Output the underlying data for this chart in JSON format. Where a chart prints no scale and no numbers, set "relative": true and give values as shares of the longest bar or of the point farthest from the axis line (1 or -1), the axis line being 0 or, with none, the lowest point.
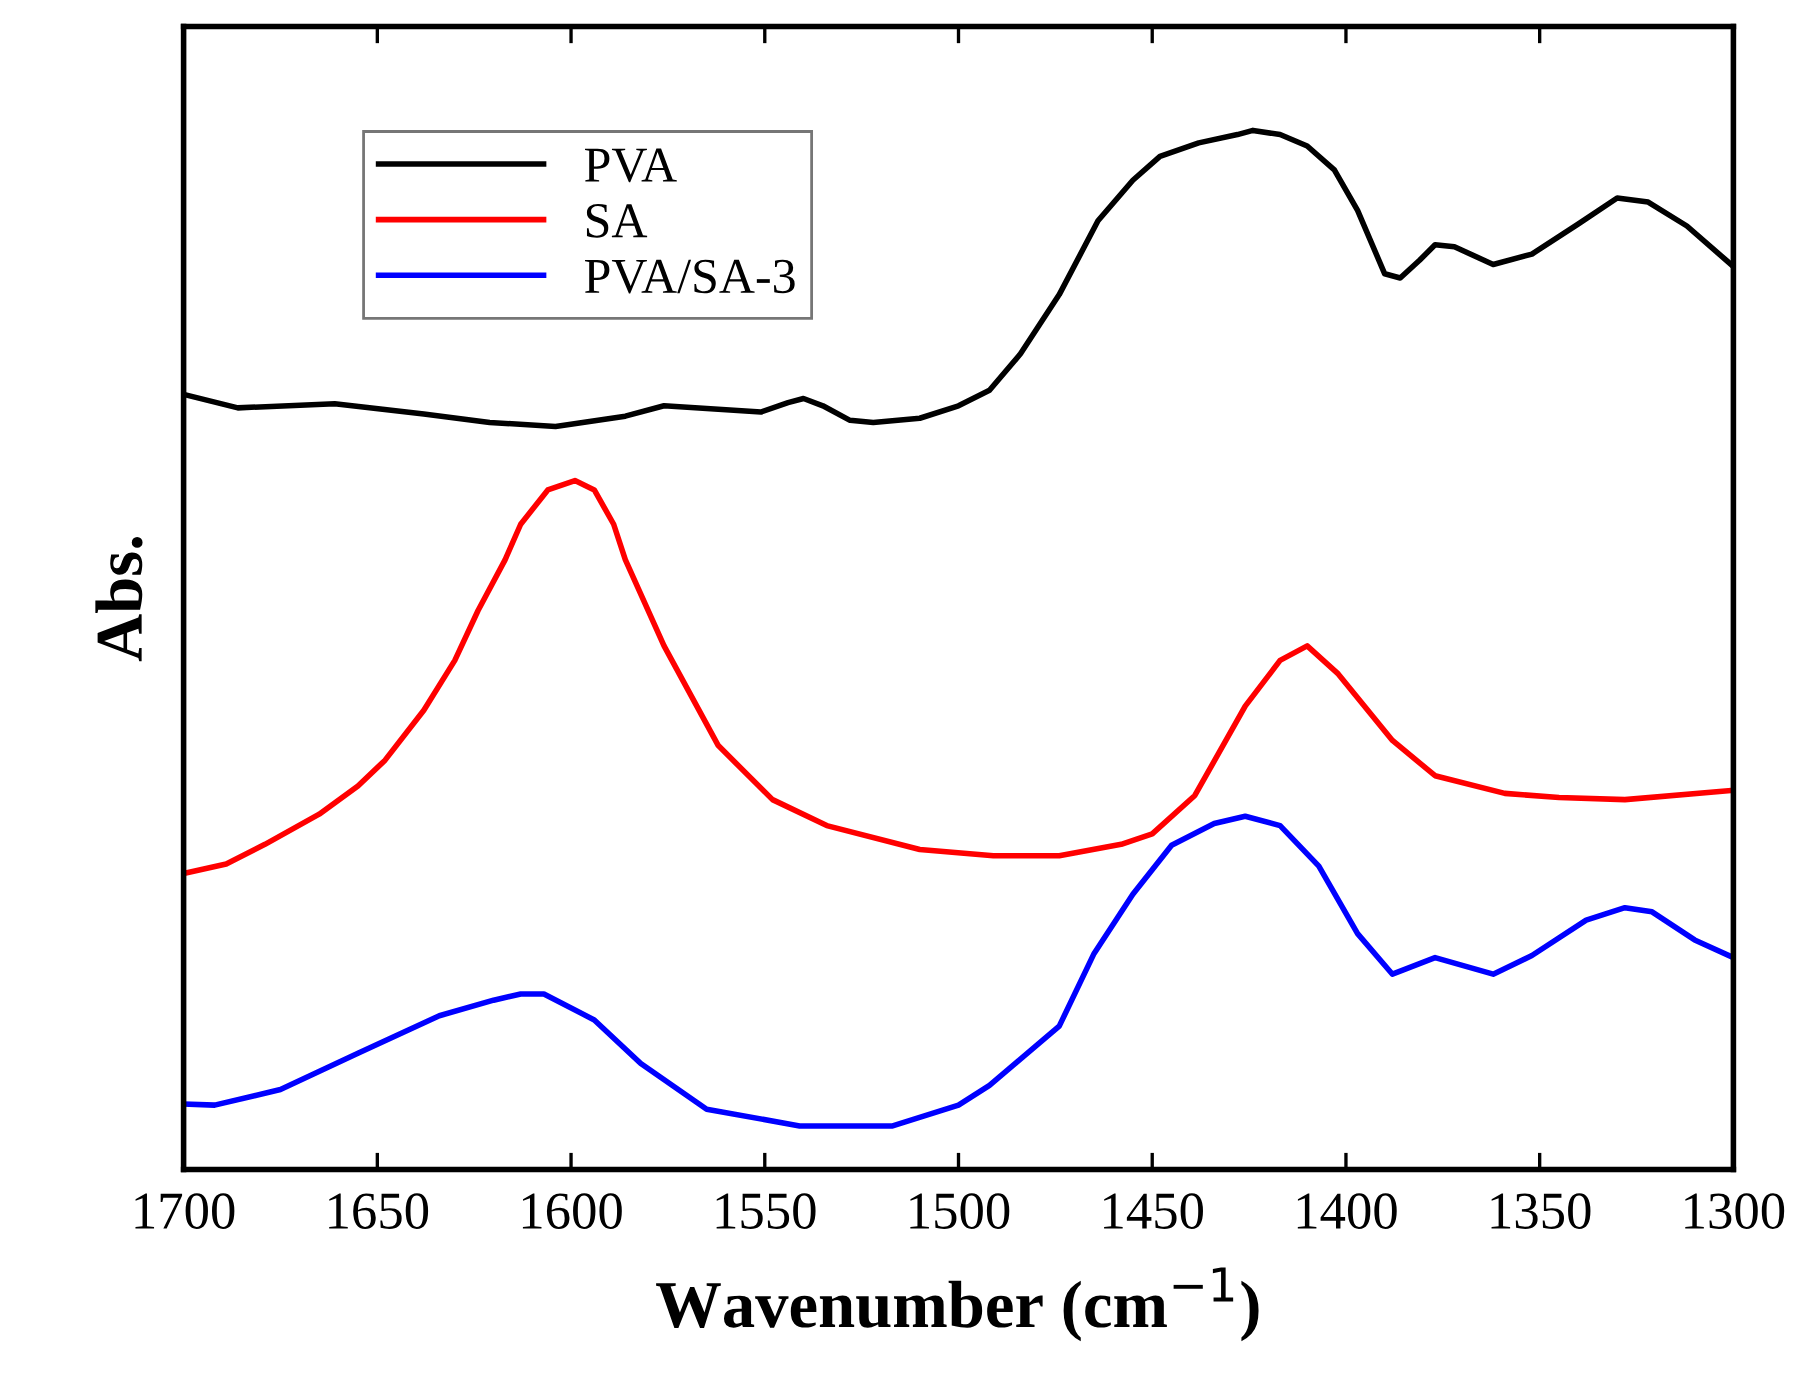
{
  "chart_data": {
    "type": "line",
    "relative": true,
    "xlabel": "Wavenumber (cm$^{−1}$)",
    "ylabel": "Abs.",
    "xlim": [
      1700,
      1300
    ],
    "xticks": [
      1700,
      1650,
      1600,
      1550,
      1500,
      1450,
      1400,
      1350,
      1300
    ],
    "tick_labels": "x",
    "grid": false,
    "legend": "top left",
    "line_style": "solid",
    "marker": "none",
    "series": [
      {
        "name": "PVA",
        "color": "#000000",
        "x": [
          1700,
          1686,
          1661,
          1638,
          1621,
          1604,
          1586,
          1576,
          1551,
          1544,
          1540,
          1535,
          1528,
          1522,
          1510,
          1500,
          1492,
          1484,
          1474,
          1464,
          1455,
          1448,
          1438,
          1428,
          1424,
          1417,
          1410,
          1403,
          1397,
          1390,
          1386,
          1381,
          1377,
          1372,
          1362,
          1352,
          1340,
          1330,
          1322,
          1312,
          1300
        ],
        "values": [
          0.746,
          0.733,
          0.737,
          0.727,
          0.719,
          0.715,
          0.725,
          0.735,
          0.729,
          0.738,
          0.742,
          0.735,
          0.721,
          0.719,
          0.723,
          0.735,
          0.75,
          0.785,
          0.842,
          0.913,
          0.952,
          0.975,
          0.988,
          0.996,
          1.0,
          0.996,
          0.985,
          0.962,
          0.923,
          0.862,
          0.858,
          0.875,
          0.89,
          0.888,
          0.871,
          0.881,
          0.91,
          0.935,
          0.931,
          0.908,
          0.869
        ]
      },
      {
        "name": "SA",
        "color": "#ff0000",
        "x": [
          1700,
          1689,
          1679,
          1665,
          1655,
          1648,
          1638,
          1630,
          1624,
          1617,
          1613,
          1606,
          1599,
          1594,
          1589,
          1586,
          1576,
          1562,
          1548,
          1534,
          1510,
          1491,
          1474,
          1458,
          1450,
          1439,
          1426,
          1417,
          1410,
          1402,
          1388,
          1377,
          1359,
          1345,
          1328,
          1300
        ],
        "values": [
          0.285,
          0.294,
          0.313,
          0.342,
          0.369,
          0.394,
          0.442,
          0.49,
          0.538,
          0.587,
          0.621,
          0.654,
          0.663,
          0.654,
          0.621,
          0.587,
          0.504,
          0.408,
          0.356,
          0.331,
          0.308,
          0.302,
          0.302,
          0.313,
          0.323,
          0.36,
          0.446,
          0.49,
          0.504,
          0.477,
          0.413,
          0.379,
          0.362,
          0.358,
          0.356,
          0.365
        ]
      },
      {
        "name": "PVA/SA-3",
        "color": "#0000ff",
        "x": [
          1700,
          1692,
          1675,
          1655,
          1634,
          1620,
          1613,
          1607,
          1594,
          1582,
          1565,
          1541,
          1517,
          1500,
          1492,
          1474,
          1465,
          1455,
          1445,
          1434,
          1426,
          1417,
          1407,
          1397,
          1388,
          1377,
          1362,
          1352,
          1338,
          1328,
          1321,
          1310,
          1300
        ],
        "values": [
          0.063,
          0.062,
          0.077,
          0.112,
          0.148,
          0.163,
          0.169,
          0.169,
          0.144,
          0.102,
          0.058,
          0.042,
          0.042,
          0.062,
          0.081,
          0.138,
          0.208,
          0.265,
          0.312,
          0.333,
          0.34,
          0.331,
          0.292,
          0.227,
          0.188,
          0.204,
          0.188,
          0.206,
          0.24,
          0.252,
          0.248,
          0.221,
          0.204
        ]
      }
    ]
  }
}
